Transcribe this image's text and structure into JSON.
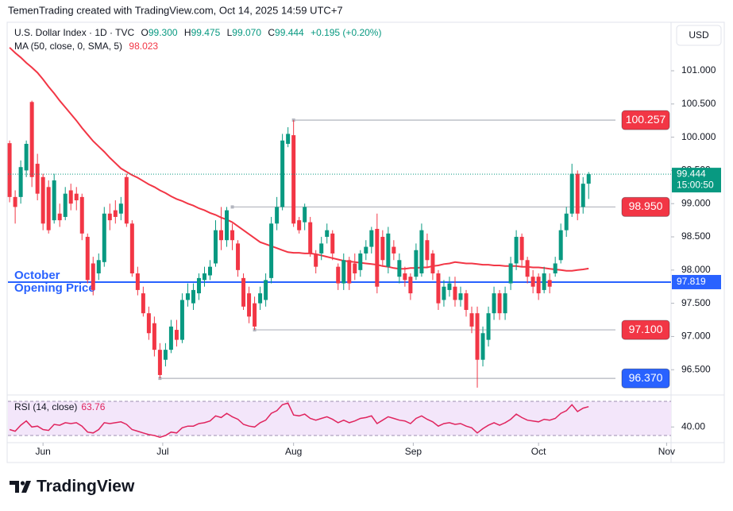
{
  "watermark": "TemenTrading created with TradingView.com, Oct 14, 2025 14:59 UTC+7",
  "brand": "TradingView",
  "chart_data": {
    "type": "candlestick",
    "currency": "USD",
    "header": {
      "symbol": "U.S. Dollar Index · 1D · TVC",
      "ohlc": [
        {
          "key": "O",
          "label": "99.300"
        },
        {
          "key": "H",
          "label": "99.475"
        },
        {
          "key": "L",
          "label": "99.070"
        },
        {
          "key": "C",
          "label": "99.444"
        }
      ],
      "change": "+0.195 (+0.20%)"
    },
    "up_color": "#089981",
    "down_color": "#f23645",
    "candles": [
      [
        99.91,
        99.95,
        99.02,
        99.1
      ],
      [
        99.1,
        99.2,
        98.7,
        98.95
      ],
      [
        99.1,
        99.65,
        99.0,
        99.55
      ],
      [
        99.5,
        99.95,
        99.4,
        99.9
      ],
      [
        100.53,
        100.55,
        99.25,
        99.4
      ],
      [
        99.6,
        99.75,
        99.05,
        99.15
      ],
      [
        99.4,
        99.45,
        98.6,
        98.7
      ],
      [
        99.25,
        99.35,
        98.55,
        98.6
      ],
      [
        98.75,
        99.45,
        98.7,
        99.35
      ],
      [
        98.85,
        99.0,
        98.65,
        98.75
      ],
      [
        98.8,
        99.25,
        98.75,
        99.15
      ],
      [
        99.2,
        99.3,
        98.9,
        99.0
      ],
      [
        99.15,
        99.25,
        98.9,
        99.05
      ],
      [
        99.1,
        99.15,
        98.45,
        98.55
      ],
      [
        98.5,
        98.55,
        97.8,
        97.85
      ],
      [
        98.1,
        98.2,
        97.62,
        97.7
      ],
      [
        97.95,
        98.25,
        97.85,
        98.15
      ],
      [
        98.12,
        98.95,
        98.05,
        98.85
      ],
      [
        98.85,
        99.0,
        98.6,
        98.75
      ],
      [
        98.9,
        99.05,
        98.7,
        98.8
      ],
      [
        98.85,
        99.1,
        98.75,
        99.0
      ],
      [
        99.4,
        99.45,
        98.65,
        98.7
      ],
      [
        98.7,
        98.75,
        97.9,
        97.95
      ],
      [
        97.95,
        98.05,
        97.62,
        97.7
      ],
      [
        97.65,
        97.75,
        97.3,
        97.35
      ],
      [
        97.35,
        97.45,
        96.95,
        97.05
      ],
      [
        97.2,
        97.3,
        96.7,
        96.8
      ],
      [
        96.8,
        96.9,
        96.37,
        96.42
      ],
      [
        96.65,
        96.9,
        96.55,
        96.8
      ],
      [
        96.8,
        97.25,
        96.75,
        97.15
      ],
      [
        97.1,
        97.25,
        96.85,
        96.95
      ],
      [
        96.95,
        97.65,
        96.9,
        97.55
      ],
      [
        97.55,
        97.8,
        97.45,
        97.65
      ],
      [
        97.5,
        97.8,
        97.4,
        97.7
      ],
      [
        97.65,
        97.95,
        97.55,
        97.88
      ],
      [
        97.85,
        98.05,
        97.75,
        97.95
      ],
      [
        97.92,
        98.15,
        97.85,
        98.05
      ],
      [
        98.1,
        98.75,
        98.05,
        98.6
      ],
      [
        98.6,
        98.95,
        98.3,
        98.45
      ],
      [
        98.45,
        98.95,
        98.35,
        98.9
      ],
      [
        98.6,
        98.7,
        98.3,
        98.45
      ],
      [
        98.4,
        98.45,
        97.9,
        98.0
      ],
      [
        97.88,
        97.95,
        97.4,
        97.45
      ],
      [
        97.65,
        97.75,
        97.2,
        97.3
      ],
      [
        97.5,
        97.6,
        97.1,
        97.15
      ],
      [
        97.5,
        97.75,
        97.4,
        97.65
      ],
      [
        97.55,
        97.95,
        97.45,
        97.85
      ],
      [
        97.88,
        98.8,
        97.8,
        98.7
      ],
      [
        98.7,
        99.1,
        98.6,
        98.95
      ],
      [
        98.95,
        100.05,
        98.9,
        99.95
      ],
      [
        99.9,
        100.15,
        99.85,
        100.05
      ],
      [
        100.03,
        100.257,
        98.65,
        98.7
      ],
      [
        98.75,
        98.8,
        98.55,
        98.6
      ],
      [
        98.72,
        99.0,
        98.6,
        98.95
      ],
      [
        98.72,
        98.8,
        98.2,
        98.25
      ],
      [
        98.24,
        98.3,
        97.95,
        98.05
      ],
      [
        98.25,
        98.5,
        98.15,
        98.4
      ],
      [
        98.5,
        98.7,
        98.4,
        98.6
      ],
      [
        98.55,
        98.6,
        98.15,
        98.25
      ],
      [
        98.05,
        98.1,
        97.7,
        97.8
      ],
      [
        97.8,
        98.25,
        97.7,
        98.15
      ],
      [
        98.15,
        98.2,
        97.7,
        97.8
      ],
      [
        98.1,
        98.25,
        97.85,
        97.95
      ],
      [
        98.0,
        98.3,
        97.9,
        98.25
      ],
      [
        98.25,
        98.45,
        98.15,
        98.35
      ],
      [
        98.35,
        98.65,
        98.25,
        98.6
      ],
      [
        98.62,
        98.85,
        97.65,
        97.75
      ],
      [
        98.5,
        98.6,
        98.05,
        98.15
      ],
      [
        98.05,
        98.65,
        97.95,
        98.55
      ],
      [
        98.35,
        98.45,
        98.15,
        98.25
      ],
      [
        97.9,
        98.25,
        97.8,
        98.15
      ],
      [
        97.95,
        98.05,
        97.75,
        97.85
      ],
      [
        97.9,
        97.95,
        97.55,
        97.65
      ],
      [
        97.9,
        98.4,
        97.85,
        98.3
      ],
      [
        97.95,
        98.7,
        97.9,
        98.6
      ],
      [
        98.45,
        98.55,
        98.05,
        98.15
      ],
      [
        98.25,
        98.3,
        97.85,
        97.95
      ],
      [
        97.95,
        98.0,
        97.4,
        97.5
      ],
      [
        97.55,
        97.85,
        97.45,
        97.75
      ],
      [
        97.7,
        97.9,
        97.6,
        97.8
      ],
      [
        97.75,
        97.9,
        97.45,
        97.55
      ],
      [
        97.55,
        97.75,
        97.45,
        97.65
      ],
      [
        97.65,
        97.7,
        97.3,
        97.4
      ],
      [
        97.35,
        97.45,
        97.05,
        97.15
      ],
      [
        97.35,
        97.45,
        96.23,
        96.65
      ],
      [
        96.65,
        97.15,
        96.55,
        97.05
      ],
      [
        96.95,
        97.45,
        96.85,
        97.35
      ],
      [
        97.35,
        97.75,
        97.25,
        97.65
      ],
      [
        97.65,
        97.7,
        97.25,
        97.35
      ],
      [
        97.35,
        97.75,
        97.25,
        97.65
      ],
      [
        97.8,
        98.2,
        97.7,
        98.1
      ],
      [
        98.1,
        98.6,
        98.0,
        98.5
      ],
      [
        98.5,
        98.55,
        98.05,
        98.15
      ],
      [
        98.15,
        98.2,
        97.8,
        97.9
      ],
      [
        97.9,
        98.0,
        97.65,
        97.75
      ],
      [
        97.9,
        97.95,
        97.55,
        97.65
      ],
      [
        97.7,
        98.05,
        97.65,
        97.95
      ],
      [
        97.85,
        97.95,
        97.65,
        97.75
      ],
      [
        97.95,
        98.2,
        97.9,
        98.1
      ],
      [
        98.15,
        98.7,
        98.1,
        98.6
      ],
      [
        98.6,
        98.95,
        98.5,
        98.85
      ],
      [
        98.85,
        99.6,
        98.8,
        99.45
      ],
      [
        99.45,
        99.5,
        98.75,
        98.85
      ],
      [
        98.95,
        99.4,
        98.85,
        99.3
      ],
      [
        99.3,
        99.475,
        99.07,
        99.444
      ]
    ],
    "last_time": "15:00:50",
    "ma": {
      "name": "MA (50, close, 0, SMA, 5)",
      "color": "#f23645",
      "values": [
        101.35,
        101.27,
        101.2,
        101.12,
        101.05,
        100.97,
        100.87,
        100.76,
        100.66,
        100.55,
        100.45,
        100.35,
        100.25,
        100.14,
        100.04,
        99.94,
        99.86,
        99.78,
        99.69,
        99.61,
        99.53,
        99.48,
        99.43,
        99.39,
        99.34,
        99.29,
        99.25,
        99.2,
        99.16,
        99.11,
        99.07,
        99.04,
        99.0,
        98.97,
        98.93,
        98.9,
        98.86,
        98.83,
        98.79,
        98.76,
        98.72,
        98.66,
        98.6,
        98.54,
        98.48,
        98.42,
        98.39,
        98.36,
        98.33,
        98.3,
        98.27,
        98.26,
        98.26,
        98.25,
        98.25,
        98.24,
        98.22,
        98.2,
        98.18,
        98.16,
        98.14,
        98.13,
        98.12,
        98.11,
        98.1,
        98.09,
        98.08,
        98.06,
        98.05,
        98.03,
        98.02,
        98.02,
        98.03,
        98.03,
        98.04,
        98.04,
        98.06,
        98.07,
        98.09,
        98.1,
        98.12,
        98.11,
        98.1,
        98.1,
        98.09,
        98.08,
        98.08,
        98.07,
        98.07,
        98.06,
        98.06,
        98.06,
        98.05,
        98.05,
        98.04,
        98.04,
        98.03,
        98.02,
        98.01,
        98.0,
        97.99,
        97.99,
        98.0,
        98.01,
        98.023
      ]
    },
    "levels": [
      {
        "value": 100.257,
        "from": 51,
        "color": "#f23645"
      },
      {
        "value": 98.95,
        "label": "98.950",
        "from": 40,
        "color": "#f23645"
      },
      {
        "value": 97.1,
        "label": "97.100",
        "from": 44,
        "color": "#f23645"
      },
      {
        "value": 96.37,
        "label": "96.370",
        "from": 27,
        "color": "#2962ff"
      }
    ],
    "opening_line": {
      "value": 97.819,
      "color": "#2962ff",
      "text": [
        "October",
        "Opening Price"
      ]
    },
    "xlim": [
      -0.3,
      118.8
    ],
    "xticks": [
      {
        "value": 6,
        "label": "Jun"
      },
      {
        "value": 27.5,
        "label": "Jul"
      },
      {
        "value": 51,
        "label": "Aug"
      },
      {
        "value": 72.5,
        "label": "Sep"
      },
      {
        "value": 95,
        "label": "Oct"
      },
      {
        "value": 118,
        "label": "Nov"
      }
    ],
    "ylim": [
      96.12,
      102.065
    ],
    "yticks": [
      {
        "value": 101,
        "label": "101.000"
      },
      {
        "value": 100.5,
        "label": "100.500"
      },
      {
        "value": 100,
        "label": "100.000"
      },
      {
        "value": 99.5,
        "label": "99.500"
      },
      {
        "value": 99,
        "label": "99.000"
      },
      {
        "value": 98.5,
        "label": "98.500"
      },
      {
        "value": 98,
        "label": "98.000"
      },
      {
        "value": 97.5,
        "label": "97.500"
      },
      {
        "value": 97,
        "label": "97.000"
      },
      {
        "value": 96.5,
        "label": "96.500"
      }
    ],
    "grid": false,
    "rsi": {
      "name": "RSI (14, close)",
      "color": "#e0245e",
      "band": [
        30,
        70
      ],
      "ylim": [
        23.5,
        74.65
      ],
      "yticks": [
        {
          "value": 40,
          "label": "40.00"
        }
      ],
      "values": [
        37,
        35,
        42,
        47,
        40,
        41,
        37,
        36,
        43,
        42,
        45,
        44,
        45,
        41,
        34,
        33,
        37,
        45,
        44,
        45,
        46,
        43,
        37,
        35,
        33,
        31,
        30,
        28,
        30,
        34,
        33,
        39,
        41,
        41,
        44,
        45,
        47,
        53,
        51,
        56,
        52,
        49,
        43,
        41,
        40,
        45,
        48,
        56,
        59,
        66,
        68,
        54,
        53,
        55,
        50,
        48,
        50,
        52,
        49,
        45,
        48,
        45,
        47,
        50,
        51,
        53,
        44,
        48,
        52,
        50,
        48,
        47,
        44,
        50,
        53,
        49,
        46,
        41,
        44,
        45,
        43,
        44,
        41,
        39,
        33,
        38,
        42,
        45,
        42,
        45,
        49,
        55,
        51,
        48,
        47,
        46,
        49,
        48,
        50,
        56,
        59,
        66,
        58,
        62,
        63.76
      ]
    }
  }
}
